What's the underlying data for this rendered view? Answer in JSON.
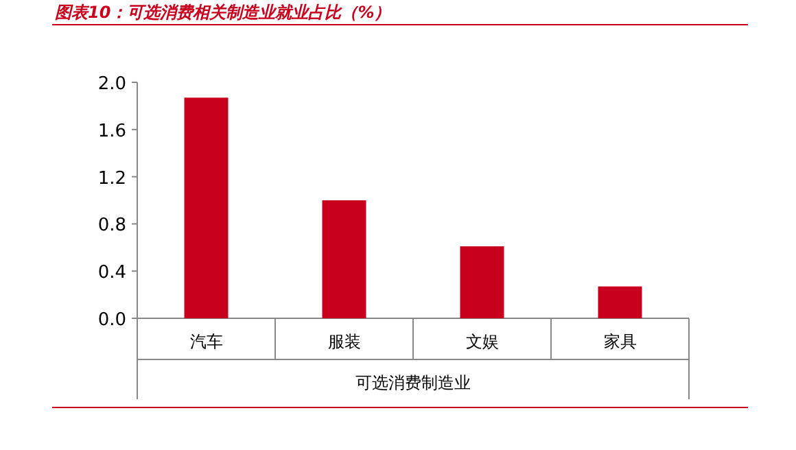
{
  "chart_data": {
    "type": "bar",
    "title": "图表10：可选消费相关制造业就业占比（%）",
    "xlabel": "可选消费制造业",
    "categories": [
      "汽车",
      "服装",
      "文娱",
      "家具"
    ],
    "series": [
      {
        "color": "#c8001e",
        "values": [
          1.87,
          1.0,
          0.61,
          0.27
        ]
      }
    ],
    "ylim": [
      0,
      2.0
    ],
    "yticks": [
      {
        "value": 0,
        "label": "0.0"
      },
      {
        "value": 0.4,
        "label": "0.4"
      },
      {
        "value": 0.8,
        "label": "0.8"
      },
      {
        "value": 1.2,
        "label": "1.2"
      },
      {
        "value": 1.6,
        "label": "1.6"
      },
      {
        "value": 2.0,
        "label": "2.0"
      }
    ],
    "grid": false
  }
}
